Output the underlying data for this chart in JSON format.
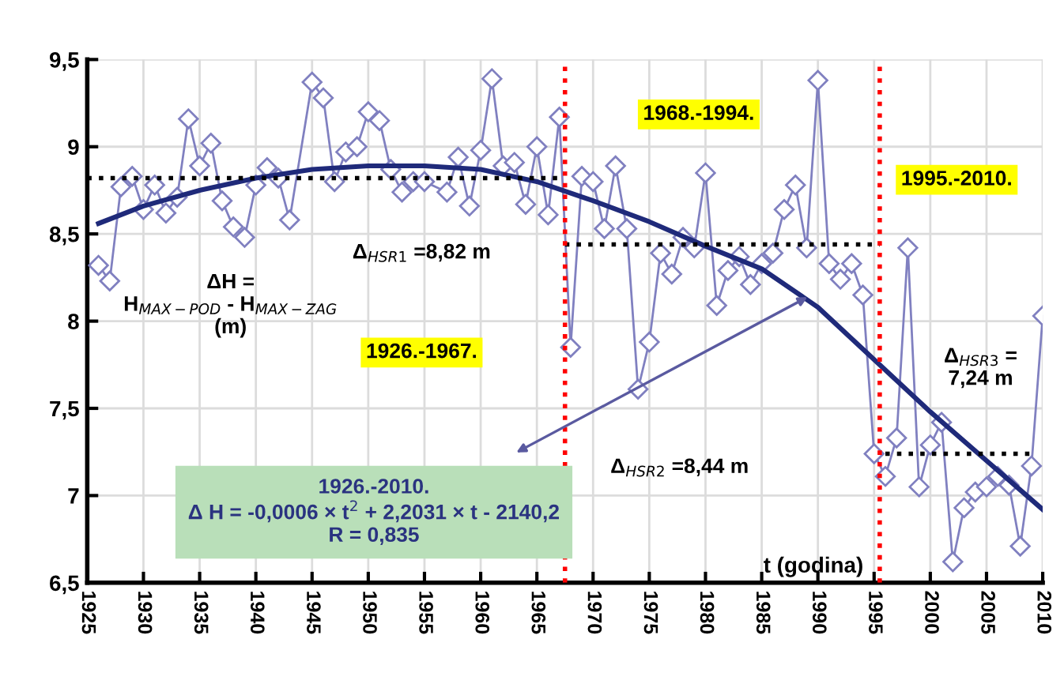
{
  "chart_data": {
    "type": "line",
    "xlabel": "t (godina)",
    "xlim": [
      1925,
      2010
    ],
    "xticks": [
      1925,
      1930,
      1935,
      1940,
      1945,
      1950,
      1955,
      1960,
      1965,
      1970,
      1975,
      1980,
      1985,
      1990,
      1995,
      2000,
      2005,
      2010
    ],
    "ylim": [
      6.5,
      9.5
    ],
    "yticks": [
      {
        "value": 6.5,
        "label": "6,5"
      },
      {
        "value": 7,
        "label": "7"
      },
      {
        "value": 7.5,
        "label": "7,5"
      },
      {
        "value": 8,
        "label": "8"
      },
      {
        "value": 8.5,
        "label": "8,5"
      },
      {
        "value": 9,
        "label": "9"
      },
      {
        "value": 9.5,
        "label": "9,5"
      }
    ],
    "grid": true,
    "series": [
      {
        "color": "#8080c0",
        "marker": "diamond",
        "line_style": "solid",
        "x": [
          1926,
          1927,
          1928,
          1929,
          1930,
          1931,
          1932,
          1933,
          1934,
          1935,
          1936,
          1937,
          1938,
          1939,
          1940,
          1941,
          1942,
          1943,
          1945,
          1946,
          1947,
          1948,
          1949,
          1950,
          1951,
          1952,
          1953,
          1954,
          1955,
          1957,
          1958,
          1959,
          1960,
          1961,
          1962,
          1963,
          1964,
          1965,
          1966,
          1967,
          1968,
          1969,
          1970,
          1971,
          1972,
          1973,
          1974,
          1975,
          1976,
          1977,
          1978,
          1979,
          1980,
          1981,
          1982,
          1983,
          1984,
          1985,
          1986,
          1987,
          1988,
          1989,
          1990,
          1991,
          1992,
          1993,
          1994,
          1995,
          1996,
          1997,
          1998,
          1999,
          2000,
          2001,
          2002,
          2003,
          2004,
          2005,
          2006,
          2007,
          2008,
          2009,
          2010
        ],
        "values": [
          8.32,
          8.23,
          8.77,
          8.83,
          8.64,
          8.78,
          8.62,
          8.71,
          9.16,
          8.89,
          9.02,
          8.69,
          8.54,
          8.48,
          8.78,
          8.88,
          8.82,
          8.58,
          9.37,
          9.28,
          8.8,
          8.97,
          9.0,
          9.2,
          9.15,
          8.87,
          8.74,
          8.8,
          8.8,
          8.74,
          8.94,
          8.66,
          8.98,
          9.39,
          8.89,
          8.91,
          8.67,
          9.0,
          8.61,
          9.17,
          7.85,
          8.83,
          8.8,
          8.53,
          8.89,
          8.53,
          7.61,
          7.88,
          8.39,
          8.27,
          8.48,
          8.42,
          8.85,
          8.09,
          8.29,
          8.37,
          8.21,
          8.33,
          8.39,
          8.64,
          8.78,
          8.42,
          9.38,
          8.33,
          8.24,
          8.33,
          8.15,
          7.24,
          7.11,
          7.33,
          8.42,
          7.05,
          7.29,
          7.42,
          6.62,
          6.93,
          7.02,
          7.05,
          7.11,
          7.06,
          6.71,
          7.17,
          8.03
        ]
      },
      {
        "color": "#1f2a7a",
        "marker": "none",
        "line_style": "solid",
        "x": [
          1926,
          1930,
          1935,
          1940,
          1945,
          1950,
          1955,
          1960,
          1965,
          1970,
          1975,
          1980,
          1985,
          1990,
          1995,
          2000,
          2005,
          2010
        ],
        "values": [
          8.56,
          8.66,
          8.75,
          8.82,
          8.87,
          8.89,
          8.89,
          8.87,
          8.8,
          8.69,
          8.57,
          8.43,
          8.3,
          8.08,
          7.78,
          7.48,
          7.2,
          6.92
        ]
      },
      {
        "color": "#000000",
        "marker": "none",
        "line_style": "dotted",
        "x": [
          1925,
          1967
        ],
        "values": [
          8.82,
          8.82
        ]
      },
      {
        "color": "#000000",
        "marker": "none",
        "line_style": "dotted",
        "x": [
          1967.5,
          1995.5
        ],
        "values": [
          8.44,
          8.44
        ]
      },
      {
        "color": "#000000",
        "marker": "none",
        "line_style": "dotted",
        "x": [
          1996,
          2009
        ],
        "values": [
          7.24,
          7.24
        ]
      }
    ],
    "ref_lines": [
      {
        "axis": "x",
        "value": 1967.5,
        "color": "#ff0000",
        "line_style": "dotted"
      },
      {
        "axis": "x",
        "value": 1995.5,
        "color": "#ff0000",
        "line_style": "dotted"
      }
    ],
    "annotations": [
      "ΔH =\nH$_{MAX−POD}$ - H$_{MAX−ZAG}$\n(m)",
      "Δ$_{HSR1}$ =8,82 m",
      "1926.-1967.",
      "1968.-1994.",
      "1995.-2010.",
      "Δ$_{HSR2}$ =8,44 m",
      "Δ$_{HSR3}$ =\n7,24 m",
      "1926.-2010.\nΔ H = -0,0006 × t$^{2}$ + 2,2031 × t - 2140,2\nR = 0,835"
    ]
  }
}
